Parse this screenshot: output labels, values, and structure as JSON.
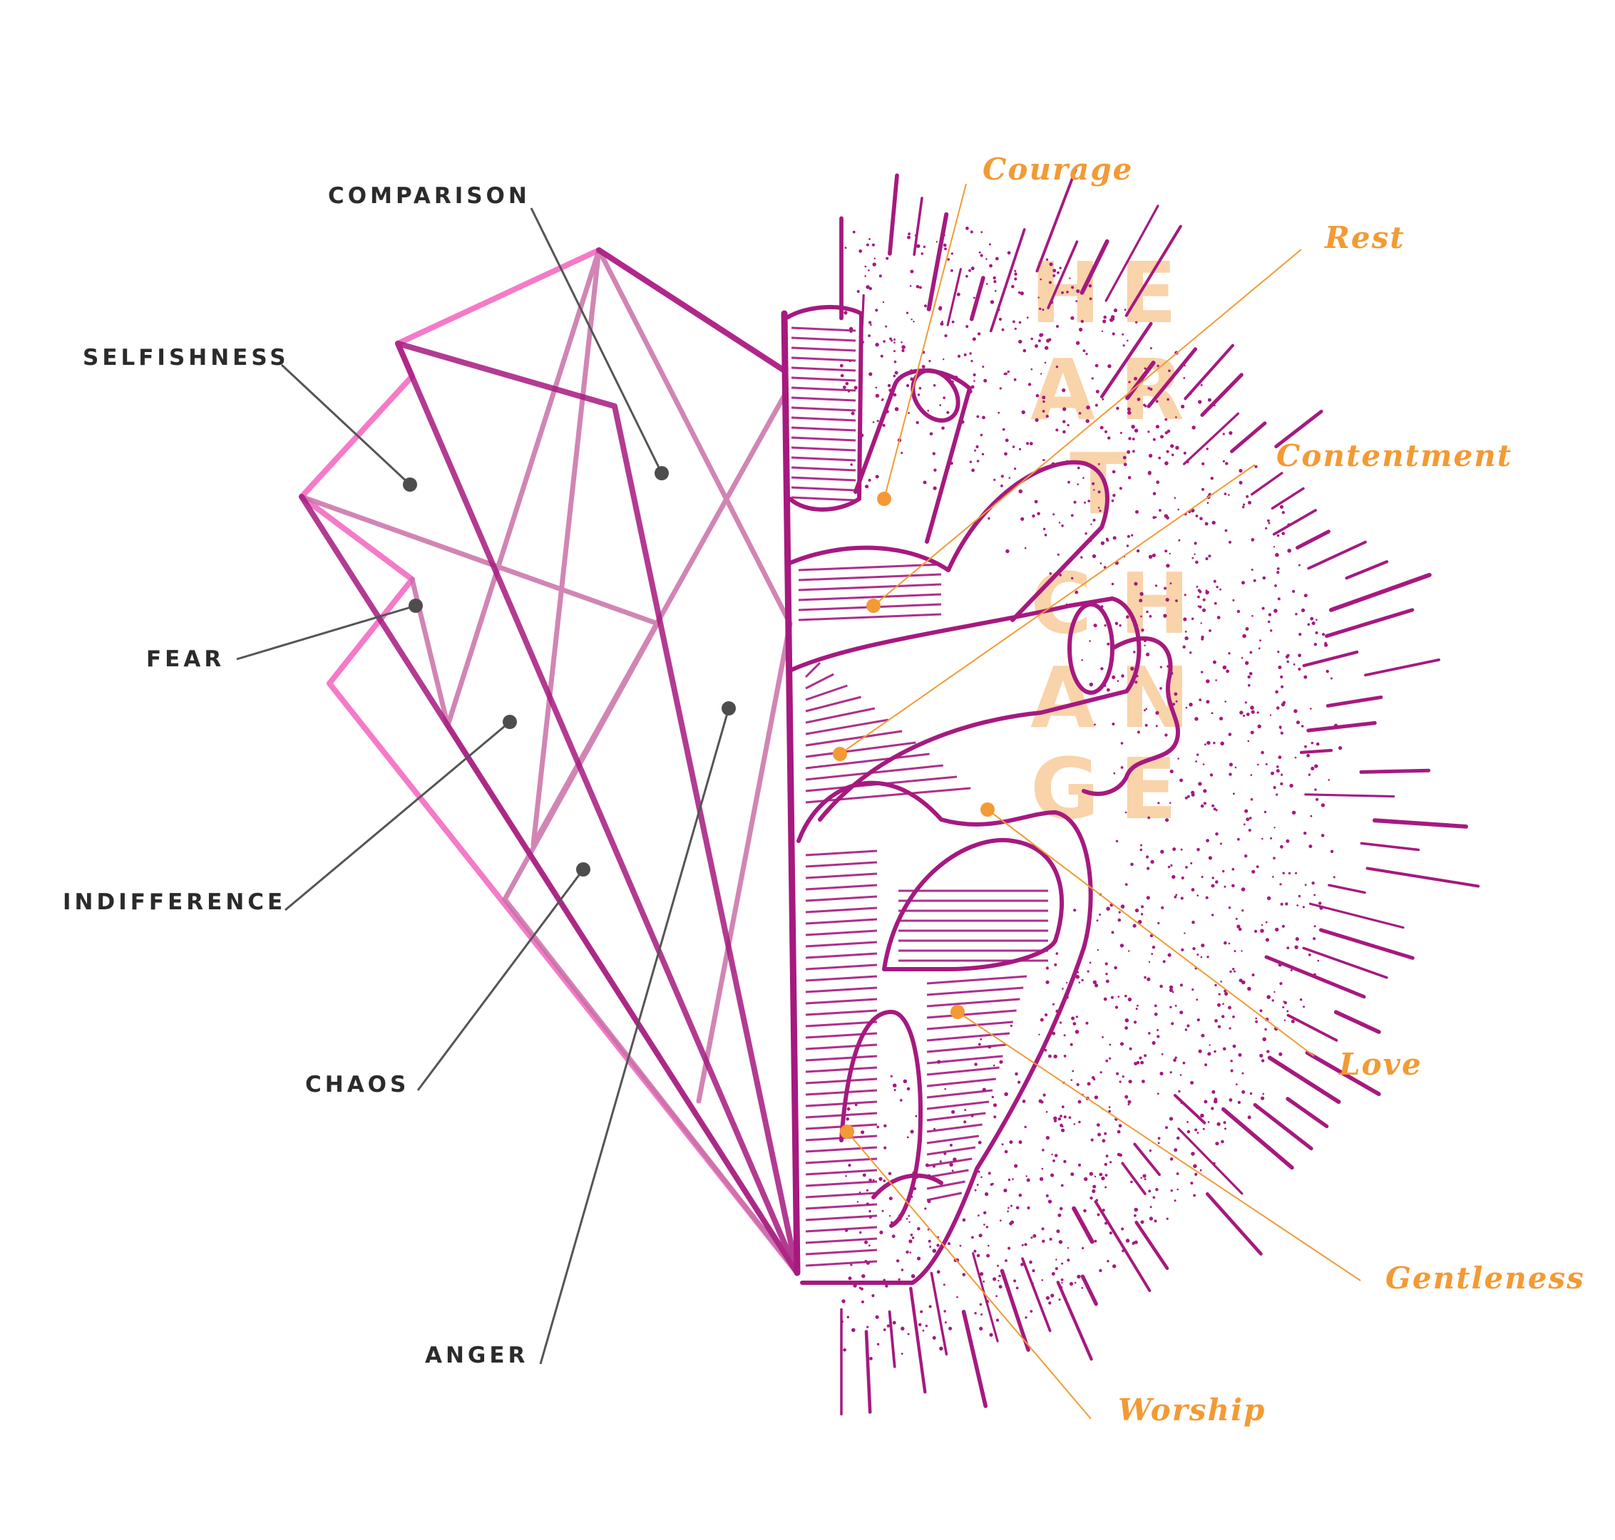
{
  "colors": {
    "magenta": "#A6197F",
    "pink": "#F57AC8",
    "mauve": "#C970A8",
    "orange": "#F39A34",
    "peach": "#F9D3A9",
    "dark": "#2B2B2B",
    "dot": "#4D4D4D"
  },
  "negatives": {
    "comparison": "COMPARISON",
    "selfishness": "SELFISHNESS",
    "fear": "FEAR",
    "indifference": "INDIFFERENCE",
    "chaos": "CHAOS",
    "anger": "ANGER"
  },
  "positives": {
    "courage": "Courage",
    "rest": "Rest",
    "contentment": "Contentment",
    "love": "Love",
    "gentleness": "Gentleness",
    "worship": "Worship"
  },
  "vertical_title": {
    "row1": [
      "H",
      "E"
    ],
    "row2": [
      "A",
      "R"
    ],
    "row3": [
      "T",
      ""
    ],
    "row4": [
      "C",
      "H"
    ],
    "row5": [
      "A",
      "N"
    ],
    "row6": [
      "G",
      "E"
    ]
  }
}
